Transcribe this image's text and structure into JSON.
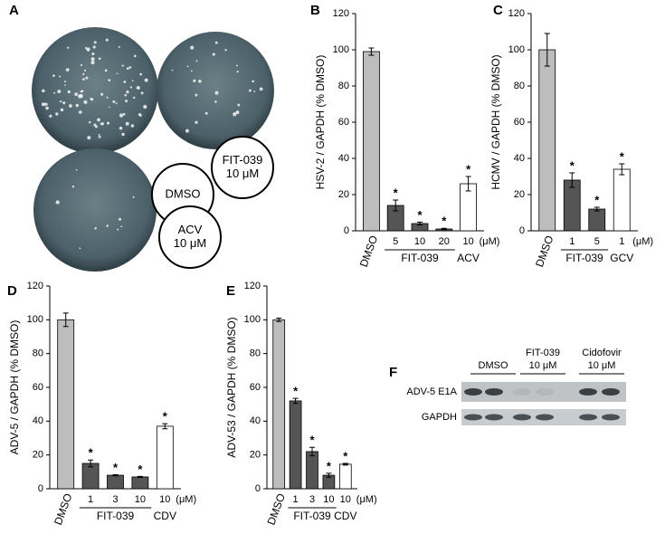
{
  "panel_labels": [
    "A",
    "B",
    "C",
    "D",
    "E",
    "F"
  ],
  "panel_a": {
    "dish_labels": [
      [
        "DMSO"
      ],
      [
        "FIT-039",
        "10 μM"
      ],
      [
        "ACV",
        "10 μM"
      ]
    ]
  },
  "panel_f": {
    "lanes": [
      [
        "DMSO"
      ],
      [
        "FIT-039",
        "10 μM"
      ],
      [
        "Cidofovir",
        "10 μM"
      ]
    ],
    "rows": [
      "ADV-5 E1A",
      "GAPDH"
    ]
  },
  "chart_data": [
    {
      "type": "bar",
      "ylabel": "HSV-2 / GAPDH (% DMSO)",
      "categories": [
        "DMSO",
        "5",
        "10",
        "20",
        "10"
      ],
      "groups": [
        null,
        "FIT-039",
        "FIT-039",
        "FIT-039",
        "ACV"
      ],
      "unit_label": "(μM)",
      "values": [
        99,
        14,
        4,
        1,
        26
      ],
      "errors": [
        2,
        3,
        0.8,
        0.4,
        4
      ],
      "significance": [
        null,
        "*",
        "*",
        "*",
        "*"
      ],
      "colors": [
        "#bdbdbd",
        "#555555",
        "#555555",
        "#555555",
        "#ffffff"
      ],
      "ylim": [
        0,
        120
      ],
      "yticks": [
        0,
        20,
        40,
        60,
        80,
        100,
        120
      ]
    },
    {
      "type": "bar",
      "ylabel": "HCMV / GAPDH (% DMSO)",
      "categories": [
        "DMSO",
        "1",
        "5",
        "1"
      ],
      "groups": [
        null,
        "FIT-039",
        "FIT-039",
        "GCV"
      ],
      "unit_label": "(μM)",
      "values": [
        100,
        28,
        12,
        34
      ],
      "errors": [
        9,
        4,
        1,
        3
      ],
      "significance": [
        null,
        "*",
        "*",
        "*"
      ],
      "colors": [
        "#bdbdbd",
        "#555555",
        "#555555",
        "#ffffff"
      ],
      "ylim": [
        0,
        120
      ],
      "yticks": [
        0,
        20,
        40,
        60,
        80,
        100,
        120
      ]
    },
    {
      "type": "bar",
      "ylabel": "ADV-5 / GAPDH (% DMSO)",
      "categories": [
        "DMSO",
        "1",
        "3",
        "10",
        "10"
      ],
      "groups": [
        null,
        "FIT-039",
        "FIT-039",
        "FIT-039",
        "CDV"
      ],
      "unit_label": "(μM)",
      "values": [
        100,
        15,
        8,
        7,
        37
      ],
      "errors": [
        4,
        2,
        0.3,
        0.3,
        1.5
      ],
      "significance": [
        null,
        "*",
        "*",
        "*",
        "*"
      ],
      "colors": [
        "#bdbdbd",
        "#555555",
        "#555555",
        "#555555",
        "#ffffff"
      ],
      "ylim": [
        0,
        120
      ],
      "yticks": [
        0,
        20,
        40,
        60,
        80,
        100,
        120
      ]
    },
    {
      "type": "bar",
      "ylabel": "ADV-53 / GAPDH (% DMSO)",
      "categories": [
        "DMSO",
        "1",
        "3",
        "10",
        "10"
      ],
      "groups": [
        null,
        "FIT-039",
        "FIT-039",
        "FIT-039",
        "CDV"
      ],
      "unit_label": "(μM)",
      "values": [
        100,
        52,
        22,
        8,
        14.5
      ],
      "errors": [
        1,
        1.5,
        2.5,
        1.2,
        0.5
      ],
      "significance": [
        null,
        "*",
        "*",
        "*",
        "*"
      ],
      "colors": [
        "#bdbdbd",
        "#555555",
        "#555555",
        "#555555",
        "#ffffff"
      ],
      "ylim": [
        0,
        120
      ],
      "yticks": [
        0,
        20,
        40,
        60,
        80,
        100,
        120
      ]
    }
  ]
}
